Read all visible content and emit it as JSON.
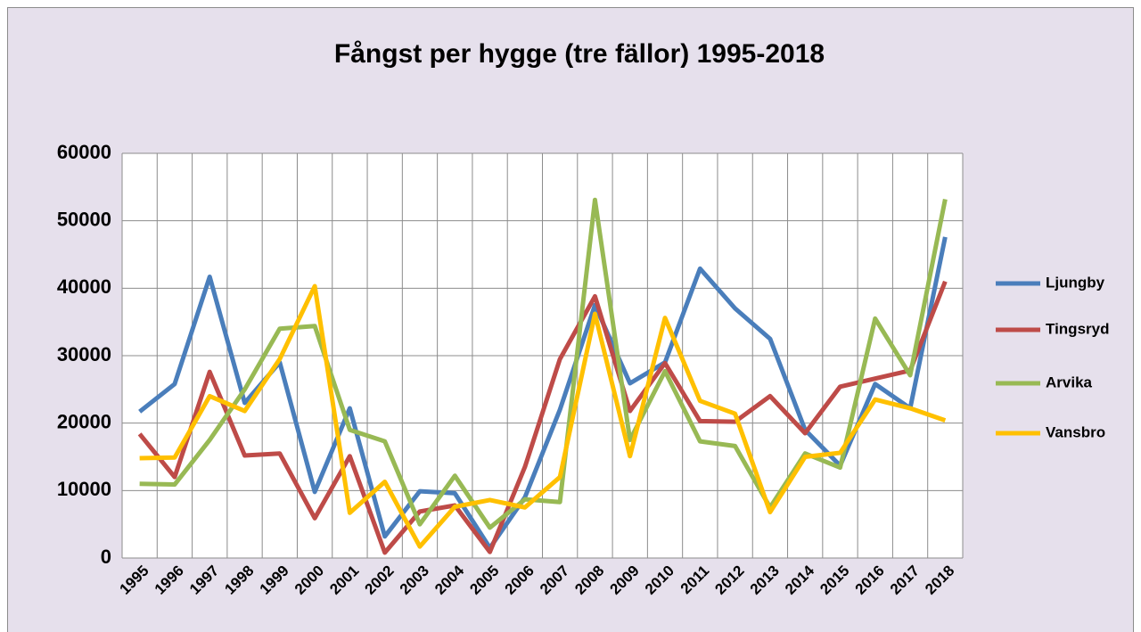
{
  "chart_data": {
    "type": "line",
    "title": "Fångst per hygge (tre fällor) 1995-2018",
    "categories": [
      "1995",
      "1996",
      "1997",
      "1998",
      "1999",
      "2000",
      "2001",
      "2002",
      "2003",
      "2004",
      "2005",
      "2006",
      "2007",
      "2008",
      "2009",
      "2010",
      "2011",
      "2012",
      "2013",
      "2014",
      "2015",
      "2016",
      "2017",
      "2018"
    ],
    "series": [
      {
        "name": "Ljungby",
        "color": "#4a7ebb",
        "values": [
          21700,
          25800,
          41700,
          23000,
          29000,
          9800,
          22200,
          3200,
          9900,
          9600,
          1500,
          9000,
          22000,
          37500,
          25900,
          29000,
          42900,
          37000,
          32500,
          19000,
          13700,
          25800,
          22200,
          47600
        ]
      },
      {
        "name": "Tingsryd",
        "color": "#be4b48",
        "values": [
          18400,
          12000,
          27600,
          15200,
          15500,
          5900,
          15100,
          800,
          6900,
          7800,
          900,
          13500,
          29500,
          38800,
          21800,
          28900,
          20300,
          20200,
          24000,
          18500,
          25400,
          26600,
          27800,
          41000
        ]
      },
      {
        "name": "Arvika",
        "color": "#98b954",
        "values": [
          11000,
          10900,
          17500,
          25000,
          34000,
          34400,
          19000,
          17300,
          5000,
          12200,
          4500,
          8700,
          8300,
          53100,
          17500,
          27700,
          17300,
          16600,
          7500,
          15500,
          13400,
          35500,
          27100,
          53200
        ]
      },
      {
        "name": "Vansbro",
        "color": "#ffc000",
        "values": [
          14800,
          14900,
          24000,
          21800,
          29500,
          40300,
          6700,
          11300,
          1700,
          7600,
          8600,
          7500,
          12000,
          36200,
          15100,
          35600,
          23300,
          21400,
          6800,
          15000,
          15600,
          23500,
          22200,
          20400
        ]
      }
    ],
    "ylim": [
      0,
      60000
    ],
    "yticks": [
      0,
      10000,
      20000,
      30000,
      40000,
      50000,
      60000
    ],
    "grid": true,
    "legend": "right"
  }
}
